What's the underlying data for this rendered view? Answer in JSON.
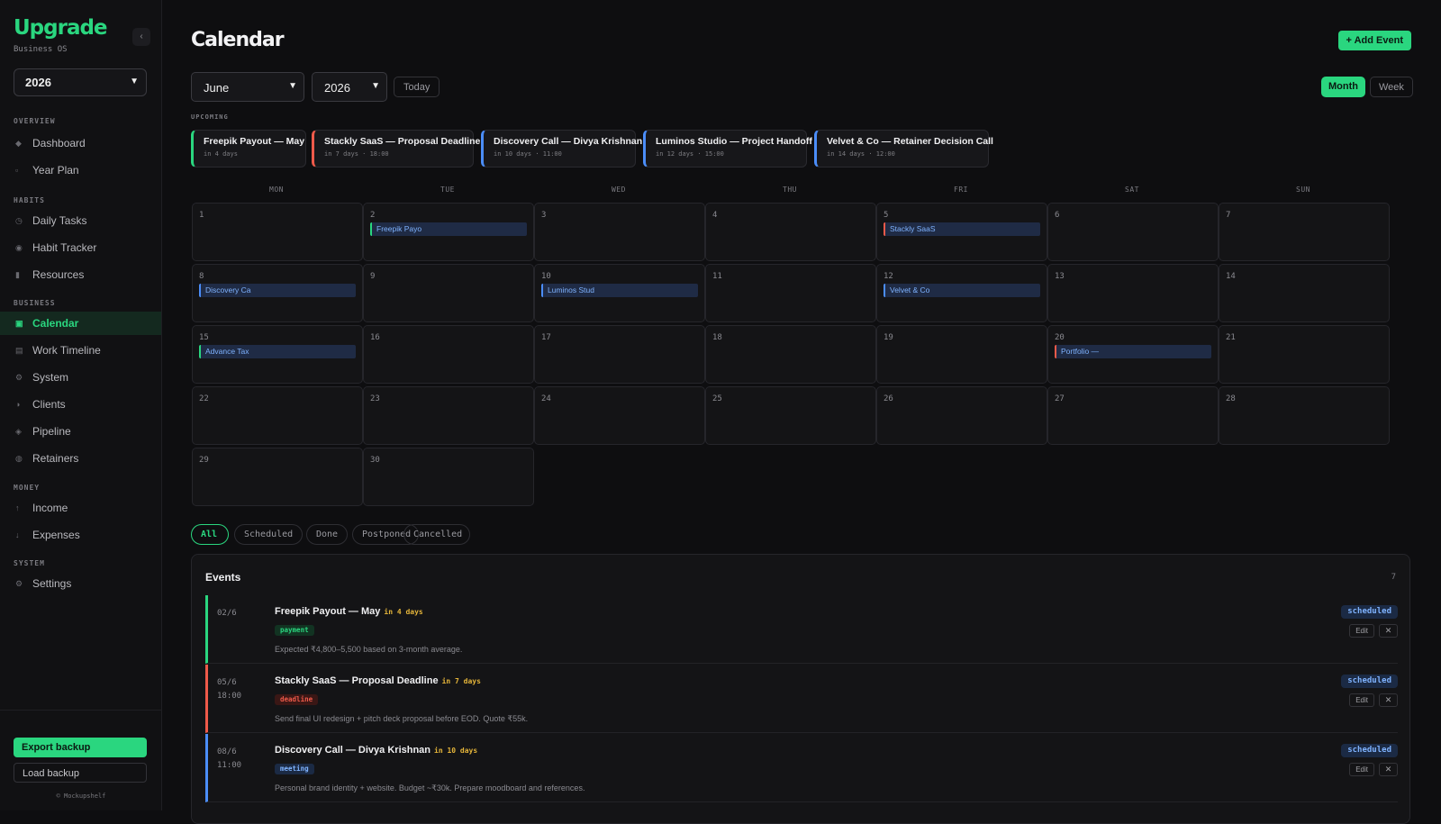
{
  "sidebar": {
    "brand": "Upgrade",
    "subtitle": "Business OS",
    "collapse": "‹",
    "year": "2026",
    "sections": {
      "overview": "OVERVIEW",
      "habits": "HABITS",
      "business": "BUSINESS",
      "money": "MONEY",
      "system": "SYSTEM"
    },
    "items": {
      "dashboard": "Dashboard",
      "year_plan": "Year Plan",
      "daily_tasks": "Daily Tasks",
      "habit_tracker": "Habit Tracker",
      "resources": "Resources",
      "calendar": "Calendar",
      "work_timeline": "Work Timeline",
      "system": "System",
      "clients": "Clients",
      "pipeline": "Pipeline",
      "retainers": "Retainers",
      "income": "Income",
      "expenses": "Expenses",
      "settings": "Settings"
    },
    "export_label": "Export backup",
    "load_label": "Load backup",
    "copyright": "© Mockupshelf"
  },
  "header": {
    "title": "Calendar",
    "add_label": "+ Add Event"
  },
  "controls": {
    "month": "June",
    "year": "2026",
    "today": "Today",
    "view_month": "Month",
    "view_week": "Week"
  },
  "upcoming": {
    "label": "UPCOMING",
    "items": [
      {
        "title": "Freepik Payout — May",
        "sub": "in 4 days",
        "color": "#2ad67f"
      },
      {
        "title": "Stackly SaaS — Proposal Deadline",
        "sub": "in 7 days · 18:00",
        "color": "#ef5a4a"
      },
      {
        "title": "Discovery Call — Divya Krishnan",
        "sub": "in 10 days · 11:00",
        "color": "#4b8df8"
      },
      {
        "title": "Luminos Studio — Project Handoff",
        "sub": "in 12 days · 15:00",
        "color": "#4b8df8"
      },
      {
        "title": "Velvet & Co — Retainer Decision Call",
        "sub": "in 14 days · 12:00",
        "color": "#4b8df8"
      }
    ]
  },
  "calendar": {
    "weekdays": [
      "MON",
      "TUE",
      "WED",
      "THU",
      "FRI",
      "SAT",
      "SUN"
    ],
    "days": [
      "1",
      "2",
      "3",
      "4",
      "5",
      "6",
      "7",
      "8",
      "9",
      "10",
      "11",
      "12",
      "13",
      "14",
      "15",
      "16",
      "17",
      "18",
      "19",
      "20",
      "21",
      "22",
      "23",
      "24",
      "25",
      "26",
      "27",
      "28",
      "29",
      "30"
    ],
    "events": {
      "2": {
        "label": "Freepik Payo",
        "color": "#2ad67f"
      },
      "5": {
        "label": "Stackly SaaS",
        "color": "#ef5a4a"
      },
      "8": {
        "label": "Discovery Ca",
        "color": "#4b8df8"
      },
      "10": {
        "label": "Luminos Stud",
        "color": "#4b8df8"
      },
      "12": {
        "label": "Velvet & Co",
        "color": "#4b8df8"
      },
      "15": {
        "label": "Advance Tax",
        "color": "#2ad67f"
      },
      "20": {
        "label": "Portfolio —",
        "color": "#ef5a4a"
      }
    }
  },
  "filters": [
    "All",
    "Scheduled",
    "Done",
    "Postponed",
    "Cancelled"
  ],
  "events": {
    "title": "Events",
    "count": "7",
    "edit_label": "Edit",
    "close_glyph": "✕",
    "rows": [
      {
        "date": "02/6",
        "time": "",
        "title": "Freepik Payout — May",
        "in": "in 4 days",
        "tag": "payment",
        "tag_color": "#2ad67f",
        "tag_bg": "#123322",
        "desc": "Expected ₹4,800–5,500 based on 3-month average.",
        "status": "scheduled",
        "color": "#2ad67f"
      },
      {
        "date": "05/6",
        "time": "18:00",
        "title": "Stackly SaaS — Proposal Deadline",
        "in": "in 7 days",
        "tag": "deadline",
        "tag_color": "#ef5a4a",
        "tag_bg": "#3a1715",
        "desc": "Send final UI redesign + pitch deck proposal before EOD. Quote ₹55k.",
        "status": "scheduled",
        "color": "#ef5a4a"
      },
      {
        "date": "08/6",
        "time": "11:00",
        "title": "Discovery Call — Divya Krishnan",
        "in": "in 10 days",
        "tag": "meeting",
        "tag_color": "#7fb3ff",
        "tag_bg": "#1b2a44",
        "desc": "Personal brand identity + website. Budget ~₹30k. Prepare moodboard and references.",
        "status": "scheduled",
        "color": "#4b8df8"
      }
    ]
  },
  "icons": {
    "nav_bullet": "diamond-icon",
    "accent": "#2ad67f"
  }
}
